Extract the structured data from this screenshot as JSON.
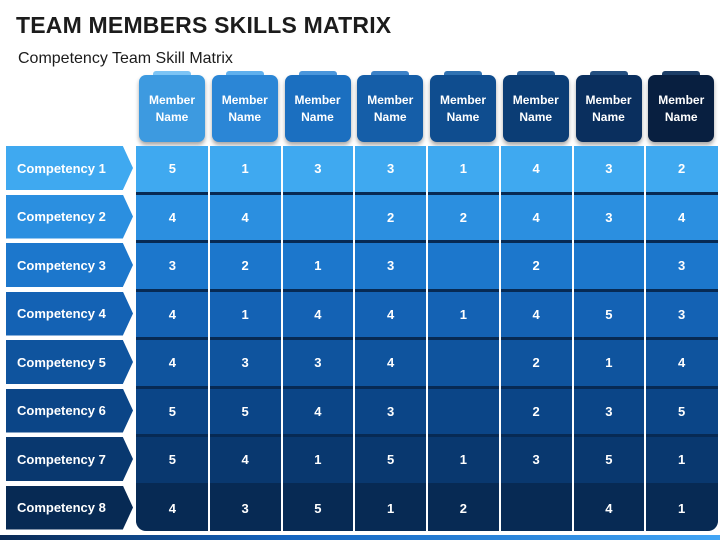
{
  "title": "TEAM MEMBERS SKILLS MATRIX",
  "subtitle": "Competency Team Skill Matrix",
  "columns": [
    {
      "label": "Member\nName",
      "color": "#3d9ae0",
      "tab": "#7cc4f5"
    },
    {
      "label": "Member\nName",
      "color": "#2b86d6",
      "tab": "#5fb0ee"
    },
    {
      "label": "Member\nName",
      "color": "#1b6fc0",
      "tab": "#4a96dc"
    },
    {
      "label": "Member\nName",
      "color": "#155ea8",
      "tab": "#3c82c8"
    },
    {
      "label": "Member\nName",
      "color": "#0f4d8f",
      "tab": "#3072b2"
    },
    {
      "label": "Member\nName",
      "color": "#0b3d75",
      "tab": "#2a5f98"
    },
    {
      "label": "Member\nName",
      "color": "#0a2f5e",
      "tab": "#244f80"
    },
    {
      "label": "Member\nName",
      "color": "#081f40",
      "tab": "#1c3d66"
    }
  ],
  "rows": [
    {
      "label": "Competency 1",
      "color": "#3fa9f0",
      "cell": "#3fa9f0",
      "values": [
        "5",
        "1",
        "3",
        "3",
        "1",
        "4",
        "3",
        "2"
      ]
    },
    {
      "label": "Competency 2",
      "color": "#2b8fe0",
      "cell": "#2b8fe0",
      "values": [
        "4",
        "4",
        "",
        "2",
        "2",
        "4",
        "3",
        "4"
      ]
    },
    {
      "label": "Competency 3",
      "color": "#1c77cc",
      "cell": "#1c77cc",
      "values": [
        "3",
        "2",
        "1",
        "3",
        "",
        "2",
        "",
        "3"
      ]
    },
    {
      "label": "Competency 4",
      "color": "#1462b4",
      "cell": "#1462b4",
      "values": [
        "4",
        "1",
        "4",
        "4",
        "1",
        "4",
        "5",
        "3"
      ]
    },
    {
      "label": "Competency 5",
      "color": "#0f549e",
      "cell": "#0f549e",
      "values": [
        "4",
        "3",
        "3",
        "4",
        "",
        "2",
        "1",
        "4"
      ]
    },
    {
      "label": "Competency 6",
      "color": "#0b4587",
      "cell": "#0b4587",
      "values": [
        "5",
        "5",
        "4",
        "3",
        "",
        "2",
        "3",
        "5"
      ]
    },
    {
      "label": "Competency 7",
      "color": "#09386f",
      "cell": "#09386f",
      "values": [
        "5",
        "4",
        "1",
        "5",
        "1",
        "3",
        "5",
        "1"
      ]
    },
    {
      "label": "Competency 8",
      "color": "#072a54",
      "cell": "#072a54",
      "values": [
        "4",
        "3",
        "5",
        "1",
        "2",
        "",
        "4",
        "1"
      ]
    }
  ]
}
